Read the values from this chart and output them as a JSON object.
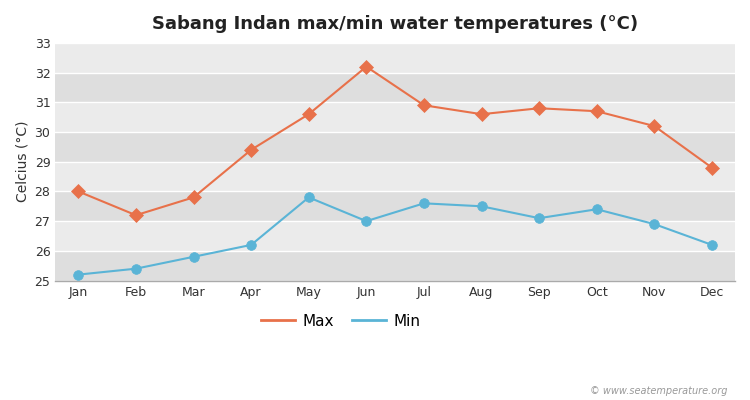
{
  "title": "Sabang Indan max/min water temperatures (°C)",
  "ylabel": "Celcius (°C)",
  "months": [
    "Jan",
    "Feb",
    "Mar",
    "Apr",
    "May",
    "Jun",
    "Jul",
    "Aug",
    "Sep",
    "Oct",
    "Nov",
    "Dec"
  ],
  "max_temps": [
    28.0,
    27.2,
    27.8,
    29.4,
    30.6,
    32.2,
    30.9,
    30.6,
    30.8,
    30.7,
    30.2,
    28.8
  ],
  "min_temps": [
    25.2,
    25.4,
    25.8,
    26.2,
    27.8,
    27.0,
    27.6,
    27.5,
    27.1,
    27.4,
    26.9,
    26.2
  ],
  "max_color": "#e8714a",
  "min_color": "#5ab4d6",
  "ylim": [
    25,
    33
  ],
  "yticks": [
    25,
    26,
    27,
    28,
    29,
    30,
    31,
    32,
    33
  ],
  "background_color": "#ffffff",
  "plot_bg_color": "#e8e8e8",
  "band_color_dark": "#dedede",
  "band_color_light": "#ebebeb",
  "legend_labels": [
    "Max",
    "Min"
  ],
  "watermark": "© www.seatemperature.org",
  "title_fontsize": 13,
  "label_fontsize": 10,
  "tick_fontsize": 9
}
